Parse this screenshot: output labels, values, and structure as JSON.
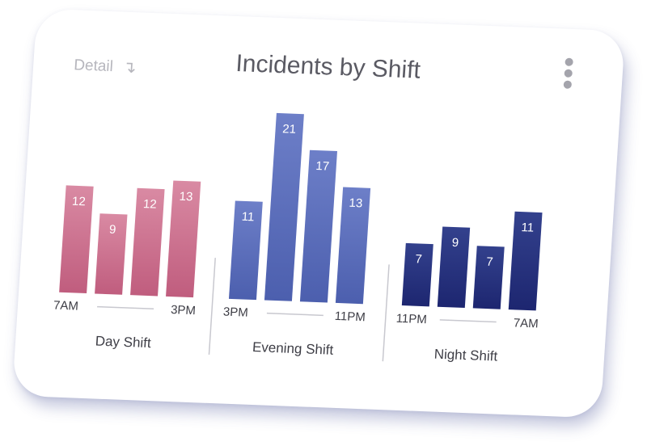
{
  "header": {
    "title": "Incidents by Shift",
    "detail_label": "Detail",
    "detail_icon": "arrow-down-icon",
    "menu_icon": "more-vertical-icon"
  },
  "chart_data": {
    "type": "bar",
    "title": "Incidents by Shift",
    "groups": [
      {
        "name": "Day Shift",
        "start_label": "7AM",
        "end_label": "3PM",
        "values": [
          12,
          9,
          12,
          13
        ],
        "color_top": "#d98aa3",
        "color_bottom": "#c05d7e"
      },
      {
        "name": "Evening Shift",
        "start_label": "3PM",
        "end_label": "11PM",
        "values": [
          11,
          21,
          17,
          13
        ],
        "color_top": "#6d7fc8",
        "color_bottom": "#4c5fae"
      },
      {
        "name": "Night Shift",
        "start_label": "11PM",
        "end_label": "7AM",
        "values": [
          7,
          9,
          7,
          11
        ],
        "color_top": "#33418d",
        "color_bottom": "#1d2670"
      }
    ],
    "ylim": [
      0,
      22
    ]
  }
}
